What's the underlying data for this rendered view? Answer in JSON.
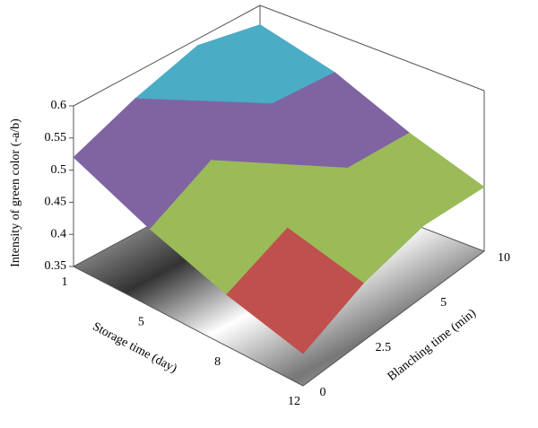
{
  "chart_data": {
    "type": "surface",
    "zlabel": "Intensity of green color (-a/b)",
    "xlabel": "Storage time (day)",
    "ylabel": "Blanching time (min)",
    "categories": [
      "1",
      "5",
      "8",
      "12"
    ],
    "y_categories": [
      "0",
      "2.5",
      "5",
      "10"
    ],
    "values": [
      [
        0.52,
        0.56,
        0.59,
        0.57
      ],
      [
        0.47,
        0.52,
        0.55,
        0.54
      ],
      [
        0.43,
        0.47,
        0.5,
        0.49
      ],
      [
        0.4,
        0.44,
        0.46,
        0.45
      ]
    ],
    "zlim": [
      0.35,
      0.6
    ],
    "zticks": [
      0.35,
      0.4,
      0.45,
      0.5,
      0.55,
      0.6
    ],
    "band_colors": [
      "#4f81bd",
      "#c0504d",
      "#9bbb59",
      "#8064a2",
      "#4bacc6"
    ]
  }
}
